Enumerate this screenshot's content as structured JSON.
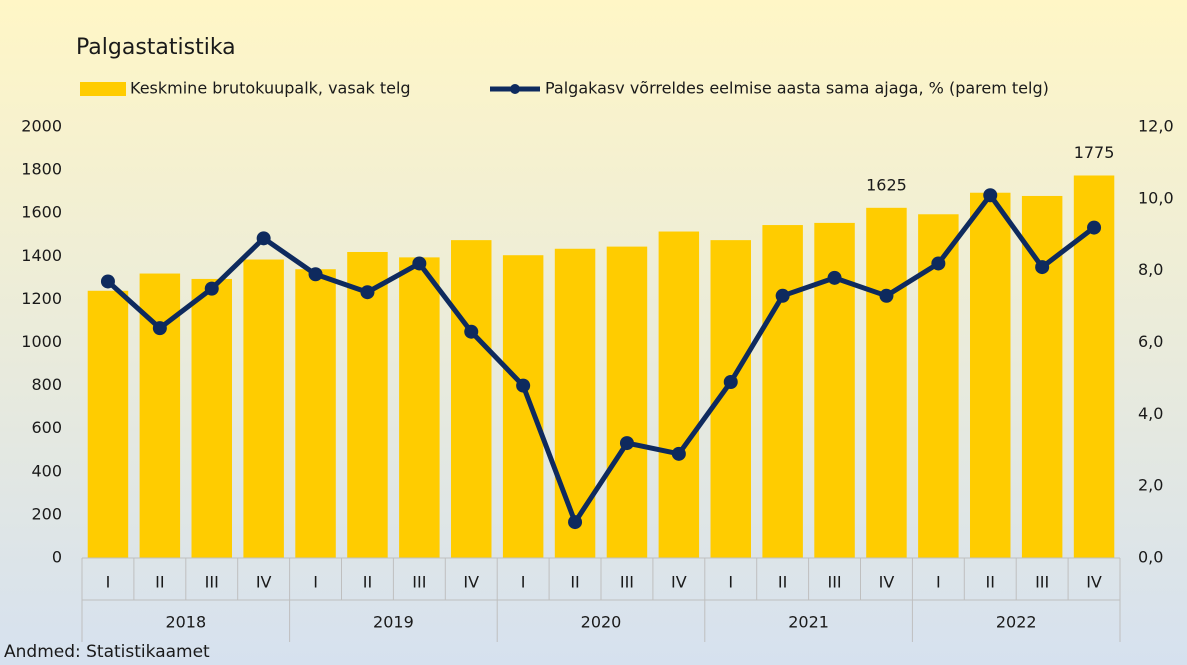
{
  "chart_data": {
    "type": "bar_line",
    "title": "Palgastatistika",
    "source": "Andmed: Statistikaamet",
    "categories": [
      "I",
      "II",
      "III",
      "IV",
      "I",
      "II",
      "III",
      "IV",
      "I",
      "II",
      "III",
      "IV",
      "I",
      "II",
      "III",
      "IV",
      "I",
      "II",
      "III",
      "IV"
    ],
    "category_groups": [
      "2018",
      "2019",
      "2020",
      "2021",
      "2022"
    ],
    "series": [
      {
        "name": "Keskmine brutokuupalk, vasak telg",
        "type": "bar",
        "color": "#FFCC00",
        "axis": "y",
        "values": [
          1240,
          1320,
          1295,
          1385,
          1340,
          1420,
          1395,
          1475,
          1405,
          1435,
          1445,
          1515,
          1475,
          1545,
          1555,
          1625,
          1595,
          1695,
          1680,
          1775
        ],
        "value_labels": [
          null,
          null,
          null,
          null,
          null,
          null,
          null,
          null,
          null,
          null,
          null,
          null,
          null,
          null,
          null,
          "1625",
          null,
          null,
          null,
          "1775"
        ]
      },
      {
        "name": "Palgakasv võrreldes eelmise aasta sama ajaga, % (parem telg)",
        "type": "line",
        "color": "#0E2A5E",
        "axis": "y2",
        "values": [
          7.7,
          6.4,
          7.5,
          8.9,
          7.9,
          7.4,
          8.2,
          6.3,
          4.8,
          1.0,
          3.2,
          2.9,
          4.9,
          7.3,
          7.8,
          7.3,
          8.2,
          10.1,
          8.1,
          9.2
        ]
      }
    ],
    "ylim": [
      0,
      2000
    ],
    "yticks": [
      0,
      200,
      400,
      600,
      800,
      1000,
      1200,
      1400,
      1600,
      1800,
      2000
    ],
    "y2lim": [
      0,
      12
    ],
    "y2ticks": [
      {
        "value": 0,
        "label": "0,0"
      },
      {
        "value": 2,
        "label": "2,0"
      },
      {
        "value": 4,
        "label": "4,0"
      },
      {
        "value": 6,
        "label": "6,0"
      },
      {
        "value": 8,
        "label": "8,0"
      },
      {
        "value": 10,
        "label": "10,0"
      },
      {
        "value": 12,
        "label": "12,0"
      }
    ],
    "legend": "top"
  }
}
